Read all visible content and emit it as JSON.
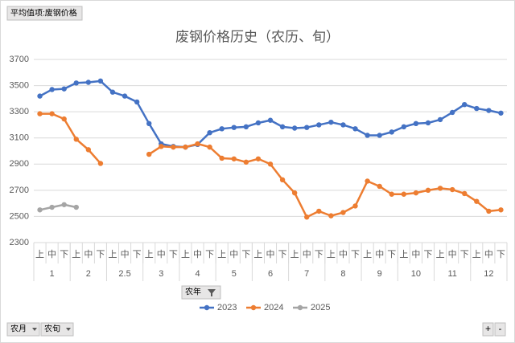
{
  "chart_data": {
    "type": "line",
    "title": "废钢价格历史（农历、旬）",
    "categories": [
      "上",
      "中",
      "下",
      "上",
      "中",
      "下",
      "上",
      "中",
      "下",
      "上",
      "中",
      "下",
      "上",
      "中",
      "下",
      "上",
      "中",
      "下",
      "上",
      "中",
      "下",
      "上",
      "中",
      "下",
      "上",
      "中",
      "下",
      "上",
      "中",
      "下",
      "上",
      "中",
      "下",
      "上",
      "中",
      "下",
      "上",
      "中",
      "下"
    ],
    "category_groups": [
      "1",
      "2",
      "2.5",
      "3",
      "4",
      "5",
      "6",
      "7",
      "8",
      "9",
      "10",
      "11",
      "12"
    ],
    "series": [
      {
        "name": "2023",
        "color": "#4472c4",
        "values": [
          3420,
          3470,
          3475,
          3520,
          3525,
          3535,
          3450,
          3420,
          3375,
          3210,
          3055,
          3035,
          3030,
          3050,
          3140,
          3170,
          3180,
          3185,
          3215,
          3235,
          3185,
          3175,
          3180,
          3200,
          3220,
          3200,
          3170,
          3120,
          3120,
          3145,
          3185,
          3210,
          3215,
          3240,
          3295,
          3355,
          3325,
          3310,
          3290
        ]
      },
      {
        "name": "2024",
        "color": "#ed7d31",
        "values": [
          3285,
          3285,
          3245,
          3090,
          3010,
          2905,
          null,
          null,
          null,
          2975,
          3035,
          3030,
          3030,
          3055,
          3030,
          2945,
          2940,
          2915,
          2940,
          2900,
          2780,
          2680,
          2495,
          2540,
          2505,
          2530,
          2580,
          2770,
          2730,
          2670,
          2670,
          2680,
          2700,
          2715,
          2705,
          2675,
          2615,
          2540,
          2550
        ]
      },
      {
        "name": "2025",
        "color": "#a5a5a5",
        "values": [
          2550,
          2570,
          2590,
          2570,
          null,
          null,
          null,
          null,
          null,
          null,
          null,
          null,
          null,
          null,
          null,
          null,
          null,
          null,
          null,
          null,
          null,
          null,
          null,
          null,
          null,
          null,
          null,
          null,
          null,
          null,
          null,
          null,
          null,
          null,
          null,
          null,
          null,
          null,
          null
        ]
      }
    ],
    "ylim": [
      2300,
      3700
    ],
    "yticks": [
      2300,
      2500,
      2700,
      2900,
      3100,
      3300,
      3500,
      3700
    ],
    "grid": true,
    "legend": "bottom",
    "field_buttons": {
      "value": "平均值项:废钢价格",
      "legend": "农年",
      "rows": [
        "农月",
        "农旬"
      ]
    },
    "zoom_buttons": [
      "+",
      "-"
    ]
  }
}
